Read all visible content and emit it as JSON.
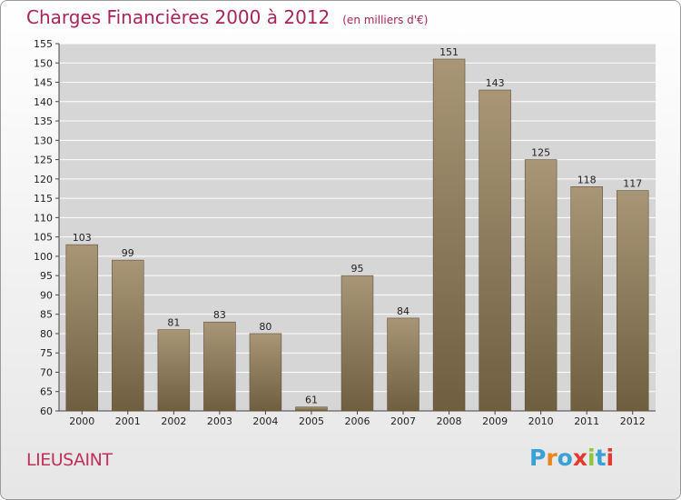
{
  "title": "Charges Financières 2000 à 2012",
  "subtitle": "(en milliers d'€)",
  "place": "LIEUSAINT",
  "logo": {
    "text": "Proxiti",
    "letter_colors": [
      "#3aa0d8",
      "#e9851a",
      "#3aa0d8",
      "#e23a2e",
      "#8cc63e",
      "#3aa0d8",
      "#e23a2e"
    ]
  },
  "colors": {
    "title": "#a8245a",
    "place": "#c0305a",
    "bar_top": "#a89676",
    "bar_bottom": "#6f5e40",
    "grid": "#ffffff",
    "plot_background": "#d6d6d6"
  },
  "chart_data": {
    "type": "bar",
    "title": "Charges Financières 2000 à 2012",
    "subtitle": "(en milliers d'€)",
    "categories": [
      "2000",
      "2001",
      "2002",
      "2003",
      "2004",
      "2005",
      "2006",
      "2007",
      "2008",
      "2009",
      "2010",
      "2011",
      "2012"
    ],
    "values": [
      103,
      99,
      81,
      83,
      80,
      61,
      95,
      84,
      151,
      143,
      125,
      118,
      117
    ],
    "ylim": [
      60,
      155
    ],
    "yticks": [
      60,
      65,
      70,
      75,
      80,
      85,
      90,
      95,
      100,
      105,
      110,
      115,
      120,
      125,
      130,
      135,
      140,
      145,
      150,
      155
    ],
    "xlabel": "",
    "ylabel": "",
    "grid": true,
    "legend": "none"
  }
}
